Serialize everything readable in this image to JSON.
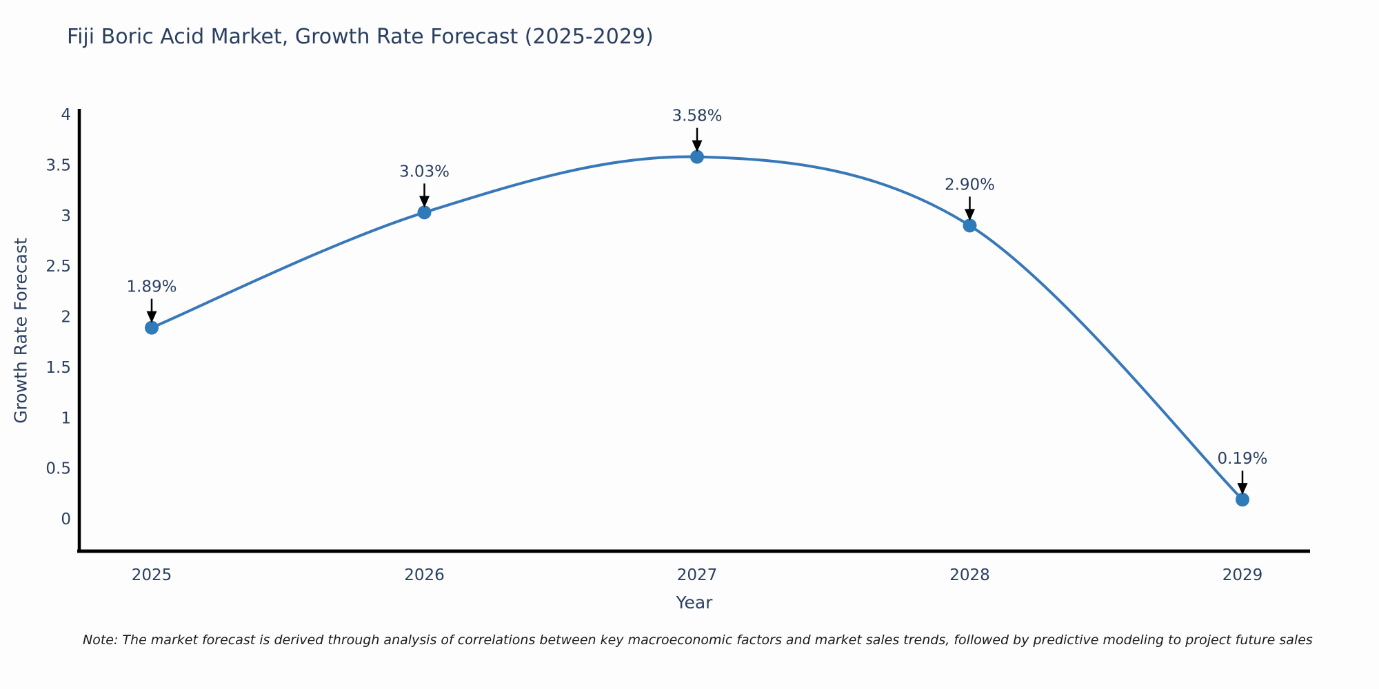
{
  "title": "Fiji Boric Acid Market, Growth Rate Forecast (2025-2029)",
  "note": "Note: The market forecast is derived through analysis of correlations between key macroeconomic factors and market sales trends, followed by predictive modeling to project future sales",
  "chart_data": {
    "type": "line",
    "x": [
      "2025",
      "2026",
      "2027",
      "2028",
      "2029"
    ],
    "values": [
      1.89,
      3.03,
      3.58,
      2.9,
      0.19
    ],
    "point_labels": [
      "1.89%",
      "3.03%",
      "3.58%",
      "2.90%",
      "0.19%"
    ],
    "title": "Fiji Boric Acid Market, Growth Rate Forecast (2025-2029)",
    "xlabel": "Year",
    "ylabel": "Growth Rate Forecast",
    "ylim": [
      0,
      4
    ],
    "yticks": [
      0,
      0.5,
      1,
      1.5,
      2,
      2.5,
      3,
      3.5,
      4
    ],
    "grid": false,
    "legend_position": "none",
    "line_color": "#3878b8",
    "marker_color": "#2f7ab8",
    "arrow_color": "#000000",
    "axis_color": "#000000",
    "text_color": "#2a3f5f"
  }
}
